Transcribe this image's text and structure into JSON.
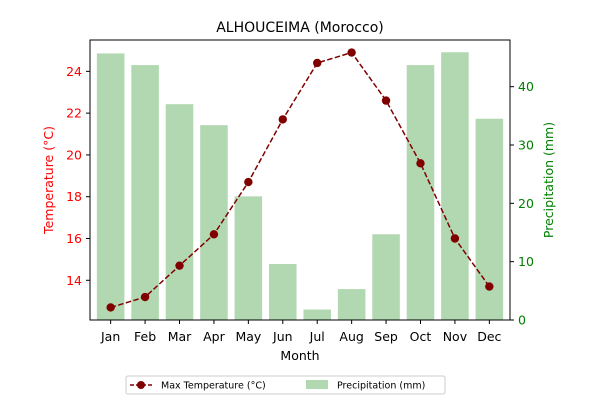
{
  "chart_data": {
    "type": "bar+line",
    "title": "ALHOUCEIMA (Morocco)",
    "xlabel": "Month",
    "categories": [
      "Jan",
      "Feb",
      "Mar",
      "Apr",
      "May",
      "Jun",
      "Jul",
      "Aug",
      "Sep",
      "Oct",
      "Nov",
      "Dec"
    ],
    "left_axis": {
      "label": "Temperature (°C)",
      "color": "#ff0000",
      "ylim": [
        12.1,
        25.5
      ],
      "ticks": [
        14,
        16,
        18,
        20,
        22,
        24
      ]
    },
    "right_axis": {
      "label": "Precipitation (mm)",
      "color": "#008000",
      "ylim": [
        0,
        48
      ],
      "ticks": [
        0,
        10,
        20,
        30,
        40
      ]
    },
    "series": [
      {
        "name": "Max Temperature (°C)",
        "type": "line",
        "axis": "left",
        "color": "#800000",
        "values": [
          12.7,
          13.2,
          14.7,
          16.2,
          18.7,
          21.7,
          24.4,
          24.9,
          22.6,
          19.6,
          16.0,
          13.7
        ]
      },
      {
        "name": "Precipitation (mm)",
        "type": "bar",
        "axis": "right",
        "color": "#b2d8b2",
        "values": [
          45.7,
          43.7,
          37.0,
          33.4,
          21.2,
          9.6,
          1.8,
          5.3,
          14.7,
          43.7,
          45.9,
          34.5
        ]
      }
    ],
    "legend": {
      "placement": "bottom-center",
      "items": [
        "Max Temperature (°C)",
        "Precipitation (mm)"
      ]
    },
    "grid": false
  }
}
